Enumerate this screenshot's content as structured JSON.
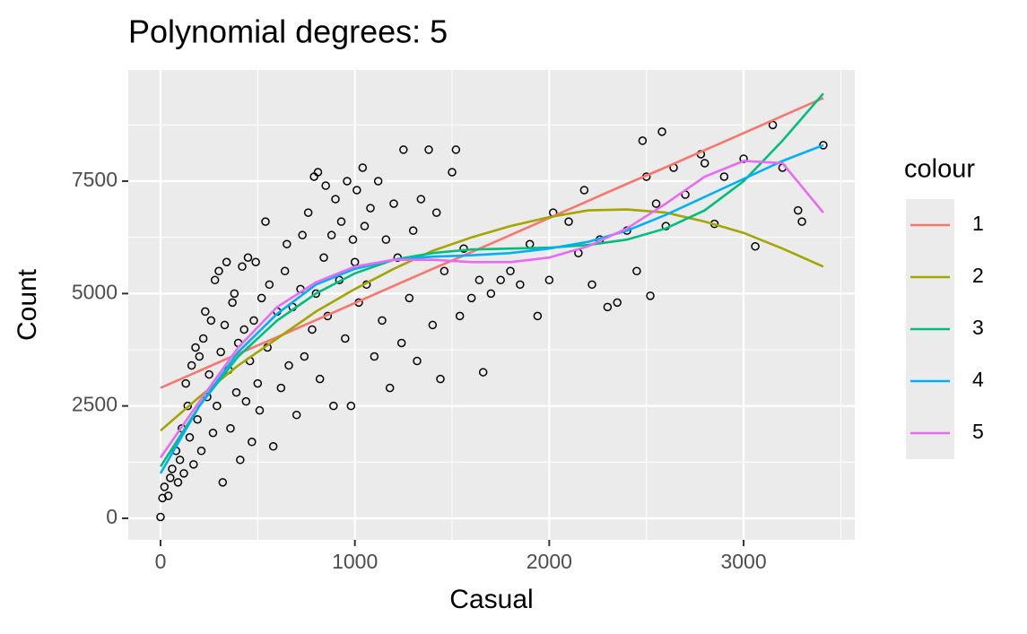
{
  "chart_data": {
    "type": "scatter-with-fits",
    "title": "Polynomial degrees: 5",
    "x_label": "Casual",
    "y_label": "Count",
    "legend_title": "colour",
    "xlim": [
      -166,
      3572
    ],
    "ylim": [
      -479,
      9974
    ],
    "xticks": [
      0,
      1000,
      2000,
      3000
    ],
    "yticks": [
      0,
      2500,
      5000,
      7500
    ],
    "grid": true,
    "points": {
      "x": [
        0,
        10,
        20,
        40,
        50,
        60,
        80,
        90,
        100,
        110,
        120,
        130,
        140,
        150,
        160,
        170,
        180,
        190,
        200,
        210,
        220,
        230,
        240,
        250,
        260,
        270,
        280,
        290,
        300,
        310,
        320,
        330,
        340,
        350,
        360,
        370,
        380,
        390,
        400,
        410,
        420,
        430,
        440,
        450,
        460,
        470,
        480,
        490,
        500,
        510,
        520,
        540,
        550,
        560,
        580,
        600,
        620,
        640,
        650,
        660,
        680,
        700,
        720,
        730,
        740,
        760,
        780,
        790,
        800,
        810,
        820,
        840,
        850,
        860,
        880,
        890,
        900,
        920,
        930,
        950,
        960,
        980,
        990,
        1000,
        1010,
        1020,
        1040,
        1050,
        1060,
        1080,
        1100,
        1120,
        1140,
        1160,
        1180,
        1200,
        1220,
        1240,
        1250,
        1280,
        1300,
        1320,
        1340,
        1380,
        1400,
        1420,
        1440,
        1460,
        1500,
        1520,
        1540,
        1560,
        1600,
        1640,
        1660,
        1700,
        1750,
        1800,
        1850,
        1900,
        1940,
        2000,
        2020,
        2100,
        2150,
        2180,
        2220,
        2260,
        2300,
        2350,
        2400,
        2450,
        2480,
        2500,
        2520,
        2550,
        2580,
        2600,
        2640,
        2700,
        2780,
        2800,
        2850,
        2900,
        3000,
        3060,
        3150,
        3200,
        3280,
        3300,
        3410
      ],
      "y": [
        30,
        450,
        700,
        500,
        900,
        1100,
        1500,
        800,
        1300,
        2000,
        1000,
        3000,
        2500,
        1800,
        3400,
        1200,
        3800,
        2200,
        3600,
        1500,
        4000,
        4600,
        2700,
        3200,
        4400,
        1900,
        5300,
        2500,
        5500,
        3700,
        800,
        4300,
        5700,
        3300,
        2000,
        4800,
        5000,
        2800,
        3900,
        1300,
        5600,
        4200,
        2600,
        5800,
        3500,
        1700,
        4400,
        5700,
        3000,
        2400,
        4900,
        6600,
        3800,
        5200,
        1600,
        4600,
        2900,
        5500,
        6100,
        3400,
        4700,
        2300,
        5100,
        6300,
        3600,
        6800,
        4200,
        7600,
        5000,
        7700,
        3100,
        5800,
        7400,
        4500,
        6300,
        2500,
        7100,
        5300,
        6600,
        4000,
        7500,
        2500,
        6200,
        5700,
        7300,
        4800,
        7800,
        6500,
        5200,
        6900,
        3600,
        7500,
        4400,
        6200,
        2900,
        7000,
        5800,
        3900,
        8200,
        4900,
        6400,
        3500,
        7100,
        8200,
        4300,
        6800,
        3100,
        5500,
        7700,
        8200,
        4500,
        6000,
        4900,
        5300,
        3250,
        5000,
        5300,
        5500,
        5200,
        6100,
        4500,
        5300,
        6800,
        6600,
        5900,
        7300,
        5200,
        6200,
        4700,
        4800,
        6400,
        5500,
        8400,
        7600,
        4950,
        7000,
        8600,
        6500,
        7800,
        7200,
        8100,
        7900,
        6550,
        7600,
        8000,
        6050,
        8750,
        7800,
        6850,
        6600,
        8300
      ]
    },
    "x": [
      0,
      200,
      400,
      600,
      800,
      1000,
      1200,
      1400,
      1600,
      1800,
      2000,
      2200,
      2400,
      2600,
      2800,
      3000,
      3200,
      3410
    ],
    "series": [
      {
        "name": "1",
        "color": "#F8766D",
        "values": [
          2900,
          3280,
          3660,
          4030,
          4410,
          4790,
          5170,
          5550,
          5920,
          6300,
          6680,
          7060,
          7440,
          7810,
          8190,
          8570,
          8950,
          9350
        ]
      },
      {
        "name": "2",
        "color": "#A3A500",
        "values": [
          1950,
          2700,
          3400,
          4000,
          4600,
          5100,
          5550,
          5950,
          6250,
          6500,
          6700,
          6850,
          6870,
          6800,
          6600,
          6350,
          6000,
          5600
        ]
      },
      {
        "name": "3",
        "color": "#00BF7D",
        "values": [
          1150,
          2500,
          3600,
          4400,
          5000,
          5450,
          5750,
          5900,
          5980,
          6000,
          6020,
          6080,
          6200,
          6450,
          6850,
          7500,
          8400,
          9450
        ]
      },
      {
        "name": "4",
        "color": "#00B0F6",
        "values": [
          1000,
          2500,
          3700,
          4550,
          5200,
          5550,
          5750,
          5820,
          5850,
          5900,
          6000,
          6150,
          6400,
          6750,
          7150,
          7550,
          7950,
          8300
        ]
      },
      {
        "name": "5",
        "color": "#E76BF3",
        "values": [
          1350,
          2600,
          3800,
          4700,
          5250,
          5600,
          5750,
          5750,
          5700,
          5700,
          5800,
          6050,
          6450,
          7000,
          7600,
          7950,
          7900,
          6800
        ]
      }
    ]
  }
}
